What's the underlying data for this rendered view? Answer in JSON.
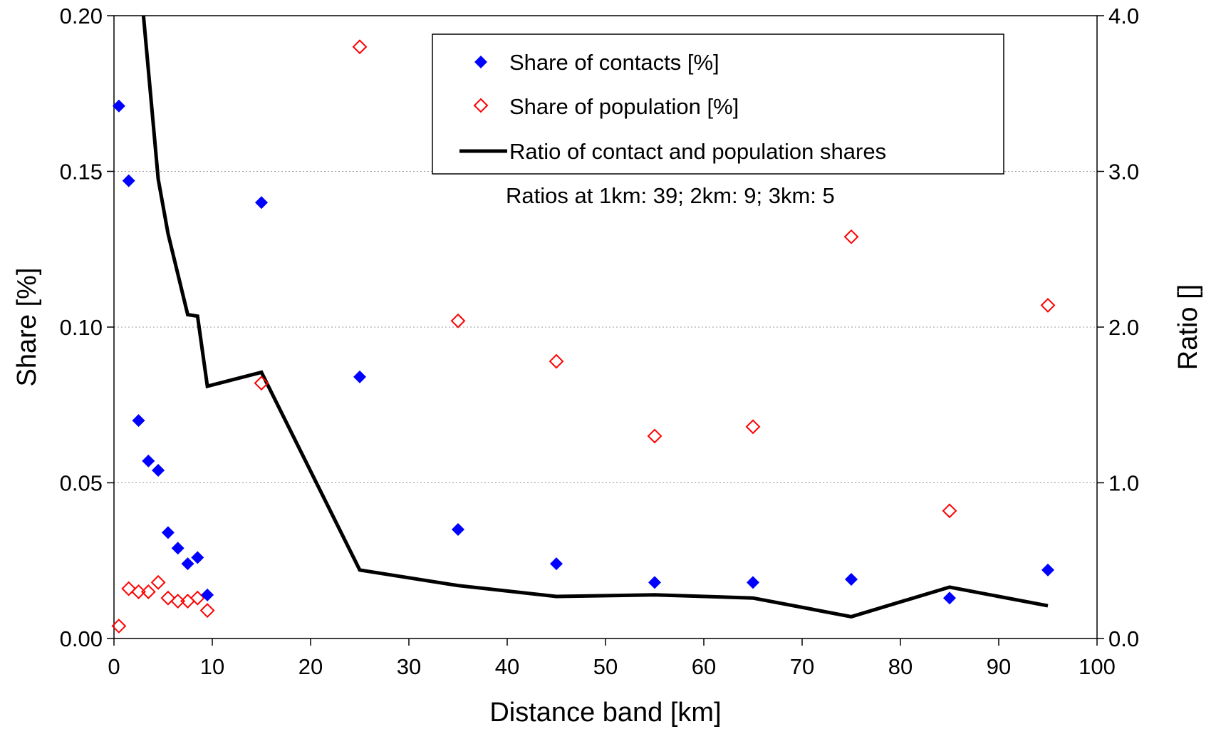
{
  "chart_data": {
    "type": "scatter",
    "xlabel": "Distance band [km]",
    "ylabel": "Share [%]",
    "y2label": "Ratio []",
    "xlim": [
      0,
      100
    ],
    "ylim": [
      0,
      0.2
    ],
    "y2lim": [
      0,
      4.0
    ],
    "x_ticks": [
      "0",
      "10",
      "20",
      "30",
      "40",
      "50",
      "60",
      "70",
      "80",
      "90",
      "100"
    ],
    "y_ticks": [
      "0.00",
      "0.05",
      "0.10",
      "0.15",
      "0.20"
    ],
    "y2_ticks": [
      "0.0",
      "1.0",
      "2.0",
      "3.0",
      "4.0"
    ],
    "grid": "horizontal dotted",
    "legend_position": "top-right",
    "annotation": "Ratios at 1km: 39; 2km: 9; 3km: 5",
    "series": [
      {
        "name": "Share of contacts [%]",
        "axis": "left",
        "marker": "filled-diamond",
        "color": "#0000ff",
        "x": [
          0.5,
          1.5,
          2.5,
          3.5,
          4.5,
          5.5,
          6.5,
          7.5,
          8.5,
          9.5,
          15,
          25,
          35,
          45,
          55,
          65,
          75,
          85,
          95
        ],
        "values": [
          0.171,
          0.147,
          0.07,
          0.057,
          0.054,
          0.034,
          0.029,
          0.024,
          0.026,
          0.014,
          0.14,
          0.084,
          0.035,
          0.024,
          0.018,
          0.018,
          0.019,
          0.013,
          0.022
        ]
      },
      {
        "name": "Share of population [%]",
        "axis": "left",
        "marker": "open-diamond",
        "color": "#ff0000",
        "x": [
          0.5,
          1.5,
          2.5,
          3.5,
          4.5,
          5.5,
          6.5,
          7.5,
          8.5,
          9.5,
          15,
          25,
          35,
          45,
          55,
          65,
          75,
          85,
          95
        ],
        "values": [
          0.004,
          0.016,
          0.015,
          0.015,
          0.018,
          0.013,
          0.012,
          0.012,
          0.013,
          0.009,
          0.082,
          0.19,
          0.102,
          0.089,
          0.065,
          0.068,
          0.129,
          0.041,
          0.107
        ]
      },
      {
        "name": "Ratio of contact and population shares",
        "axis": "right",
        "marker": "line",
        "color": "#000000",
        "x": [
          3,
          4.5,
          5.5,
          7.5,
          8.5,
          9.5,
          15,
          25,
          35,
          45,
          55,
          65,
          75,
          85,
          95
        ],
        "values": [
          4.0,
          2.95,
          2.6,
          2.08,
          2.07,
          1.62,
          1.71,
          0.44,
          0.34,
          0.27,
          0.28,
          0.26,
          0.14,
          0.33,
          0.21
        ]
      }
    ]
  }
}
